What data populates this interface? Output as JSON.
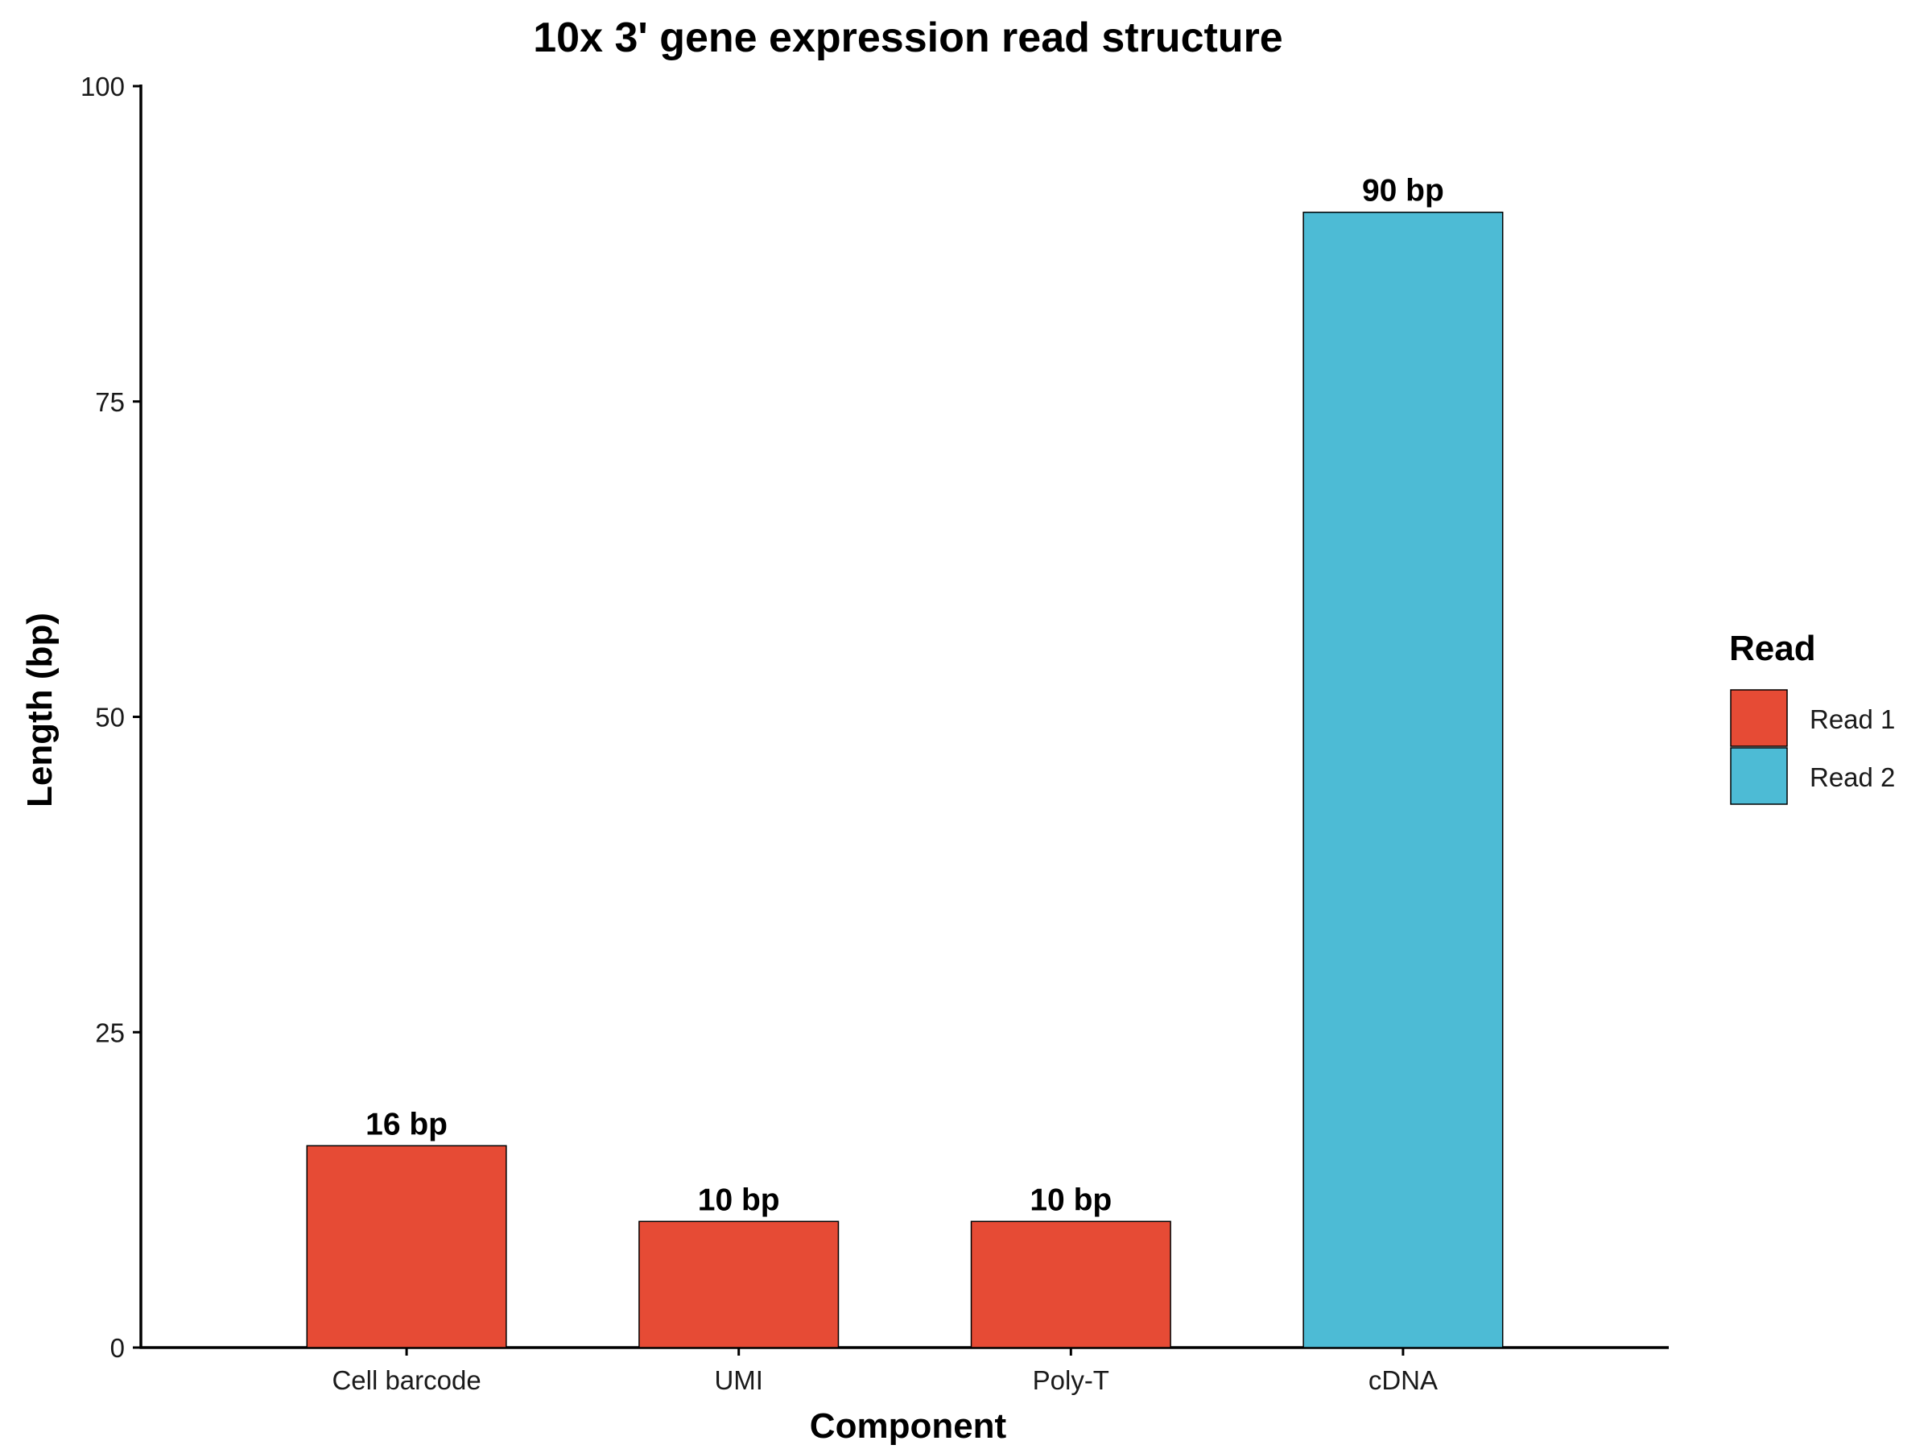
{
  "chart_data": {
    "type": "bar",
    "title": "10x 3' gene expression read structure",
    "xlabel": "Component",
    "ylabel": "Length (bp)",
    "categories": [
      "Cell barcode",
      "UMI",
      "Poly-T",
      "cDNA"
    ],
    "values": [
      16,
      10,
      10,
      90
    ],
    "data_labels": [
      "16 bp",
      "10 bp",
      "10 bp",
      "90 bp"
    ],
    "group": [
      "Read 1",
      "Read 1",
      "Read 1",
      "Read 2"
    ],
    "ylim": [
      0,
      100
    ],
    "yticks": [
      0,
      25,
      50,
      75,
      100
    ],
    "grid": false,
    "legend": {
      "title": "Read",
      "placement": "right",
      "entries": [
        {
          "label": "Read 1",
          "color": "#E64B35"
        },
        {
          "label": "Read 2",
          "color": "#4DBBD5"
        }
      ]
    }
  }
}
